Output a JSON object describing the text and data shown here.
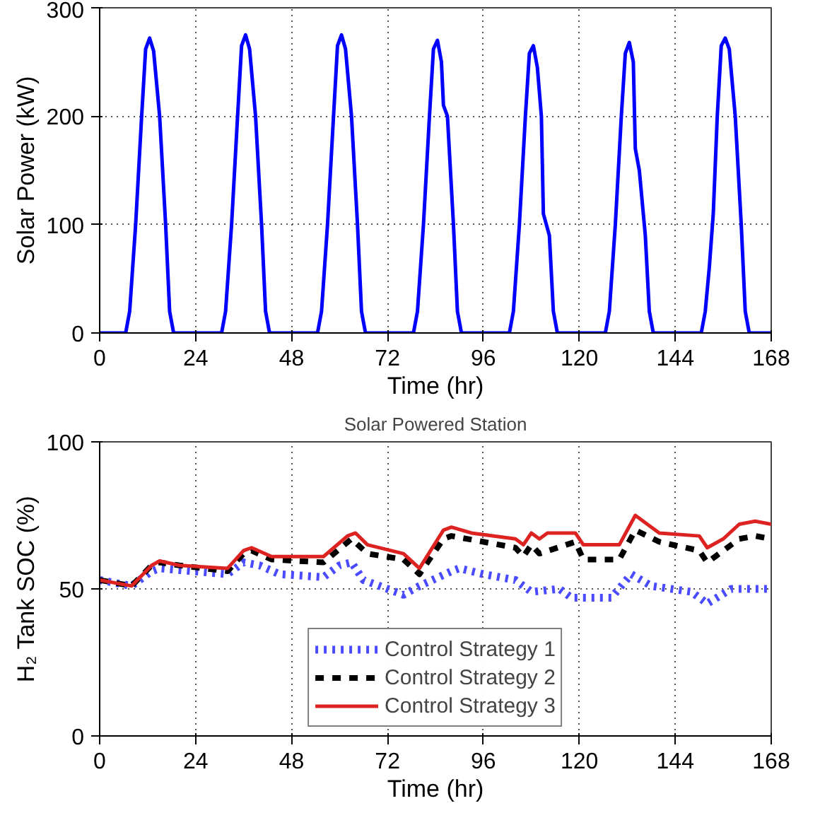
{
  "chart_data": [
    {
      "type": "line",
      "xlabel": "Time (hr)",
      "ylabel": "Solar Power (kW)",
      "xlim": [
        0,
        168
      ],
      "ylim": [
        0,
        300
      ],
      "xticks": [
        0,
        24,
        48,
        72,
        96,
        120,
        144,
        168
      ],
      "yticks": [
        0,
        100,
        200,
        300
      ],
      "grid": true,
      "legend": false,
      "series": [
        {
          "color": "#0000ff",
          "line_style": "solid",
          "x": [
            0,
            6.5,
            7.5,
            9,
            10.5,
            11.5,
            12.5,
            13.5,
            15,
            16.5,
            17.5,
            18.5,
            30.5,
            31.5,
            33,
            34.5,
            35.5,
            36.5,
            37.5,
            39,
            40.5,
            41.5,
            42.5,
            54.5,
            55.5,
            57,
            58.5,
            59.5,
            60.5,
            61.5,
            63,
            64.5,
            65.5,
            66.5,
            78.5,
            79.5,
            81,
            82.5,
            83.5,
            84.5,
            85.5,
            86,
            87,
            88.5,
            89.5,
            90.5,
            102.5,
            103.5,
            105,
            106.5,
            107.5,
            108.5,
            109.5,
            110.5,
            111,
            112.5,
            113.5,
            114.5,
            126.5,
            127.5,
            129,
            130.5,
            131.5,
            132.5,
            133.5,
            134,
            135,
            136.5,
            137.5,
            138.5,
            150.5,
            151.5,
            152.5,
            153.5,
            154.5,
            155.5,
            156.5,
            157.5,
            159,
            160.5,
            161.5,
            162.5,
            168
          ],
          "values": [
            0,
            0,
            20,
            100,
            200,
            262,
            272,
            260,
            200,
            100,
            20,
            0,
            0,
            20,
            100,
            200,
            265,
            275,
            262,
            200,
            100,
            20,
            0,
            0,
            20,
            100,
            200,
            265,
            275,
            262,
            200,
            100,
            20,
            0,
            0,
            20,
            100,
            200,
            262,
            270,
            250,
            210,
            200,
            100,
            20,
            0,
            0,
            20,
            100,
            200,
            258,
            265,
            245,
            200,
            110,
            90,
            20,
            0,
            0,
            20,
            100,
            200,
            258,
            268,
            250,
            170,
            150,
            90,
            20,
            0,
            0,
            20,
            60,
            110,
            200,
            265,
            272,
            262,
            200,
            100,
            20,
            0,
            0
          ]
        }
      ]
    },
    {
      "type": "line",
      "title": "Solar Powered Station",
      "xlabel": "Time (hr)",
      "ylabel": "H₂ Tank SOC (%)",
      "xlim": [
        0,
        168
      ],
      "ylim": [
        0,
        100
      ],
      "xticks": [
        0,
        24,
        48,
        72,
        96,
        120,
        144,
        168
      ],
      "yticks": [
        0,
        50,
        100
      ],
      "grid": true,
      "legend": "bottom",
      "series": [
        {
          "name": "Control Strategy 1",
          "color": "#4a4aff",
          "line_style": "dotted",
          "x": [
            0,
            8,
            13,
            15,
            32,
            36,
            40,
            45,
            56,
            60,
            63,
            66,
            76,
            80,
            88,
            90,
            96,
            104,
            108,
            115,
            118,
            128,
            133,
            138,
            148,
            152,
            158,
            168
          ],
          "values": [
            53,
            51,
            56,
            57,
            55,
            59,
            58,
            55,
            54,
            58,
            59,
            53,
            48,
            51,
            56,
            57,
            55,
            53,
            49,
            50,
            47,
            47,
            55,
            51,
            49,
            45,
            50,
            50
          ]
        },
        {
          "name": "Control Strategy 2",
          "color": "#000000",
          "line_style": "dashed",
          "x": [
            0,
            8,
            13,
            15,
            20,
            32,
            36,
            38,
            43,
            56,
            63,
            67,
            76,
            80,
            86,
            88,
            104,
            106,
            108,
            110,
            119,
            121,
            130,
            134,
            140,
            150,
            152,
            156,
            160,
            164,
            168
          ],
          "values": [
            53,
            51,
            58,
            59,
            58,
            56,
            62,
            63,
            60,
            59,
            67,
            62,
            60,
            55,
            67,
            68,
            64,
            61,
            65,
            62,
            66,
            60,
            60,
            70,
            66,
            63,
            59,
            63,
            67,
            68,
            67
          ]
        },
        {
          "name": "Control Strategy 3",
          "color": "#dd2222",
          "line_style": "solid",
          "x": [
            0,
            8,
            13,
            15,
            20,
            32,
            36,
            38,
            43,
            56,
            62,
            64,
            67,
            76,
            80,
            86,
            88,
            93,
            104,
            106,
            108,
            110,
            112,
            119,
            121,
            130,
            134,
            140,
            150,
            152,
            156,
            160,
            164,
            168
          ],
          "values": [
            53,
            51,
            58,
            59.5,
            58,
            57,
            63,
            64,
            61,
            61,
            68,
            69,
            65,
            62,
            57,
            70,
            71,
            69,
            67,
            65,
            69,
            67,
            69,
            69,
            65,
            65,
            75,
            69,
            68,
            64,
            67,
            72,
            73,
            72
          ]
        }
      ]
    }
  ]
}
